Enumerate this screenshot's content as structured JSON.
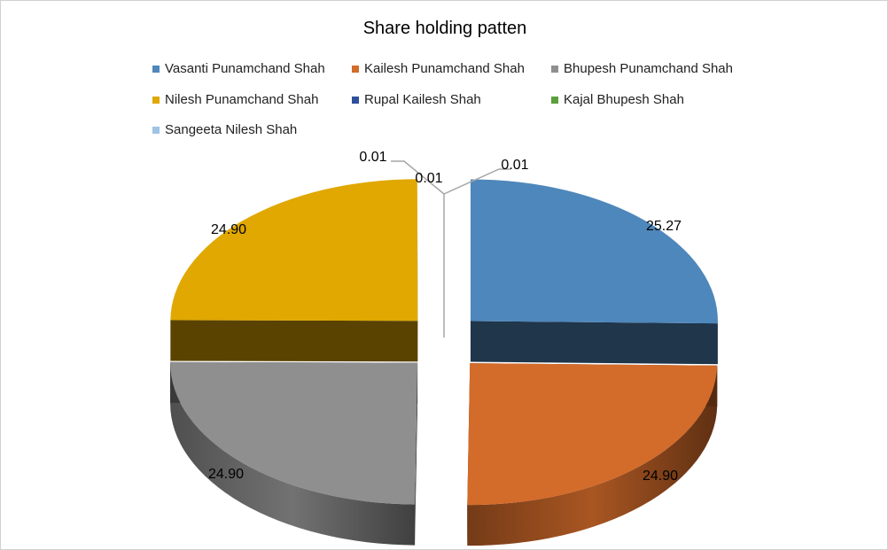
{
  "chart_data": {
    "type": "pie",
    "title": "Share holding patten",
    "legend_position": "top",
    "slices": [
      {
        "label": "Vasanti Punamchand Shah",
        "value": 25.27,
        "display": "25.27",
        "color": "#4e87bb"
      },
      {
        "label": "Kailesh Punamchand Shah",
        "value": 24.9,
        "display": "24.90",
        "color": "#d36b2a"
      },
      {
        "label": "Bhupesh Punamchand Shah",
        "value": 24.9,
        "display": "24.90",
        "color": "#8f8f8f"
      },
      {
        "label": "Nilesh Punamchand Shah",
        "value": 24.9,
        "display": "24.90",
        "color": "#e0a800"
      },
      {
        "label": "Rupal Kailesh Shah",
        "value": 0.01,
        "display": "0.01",
        "color": "#2e4f9a"
      },
      {
        "label": "Kajal Bhupesh Shah",
        "value": 0.01,
        "display": "0.01",
        "color": "#5aa03c"
      },
      {
        "label": "Sangeeta Nilesh Shah",
        "value": 0.01,
        "display": "0.01",
        "color": "#9ec3e6"
      }
    ]
  }
}
